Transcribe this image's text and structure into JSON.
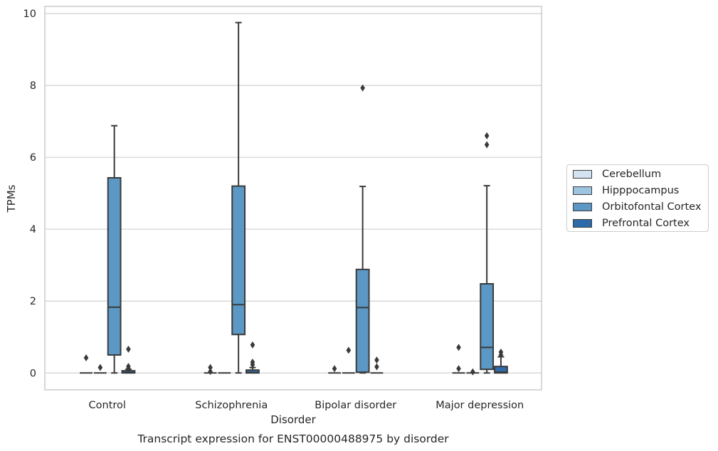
{
  "chart_data": {
    "type": "box",
    "title": "Transcript expression for ENST00000488975 by disorder",
    "xlabel": "Disorder",
    "ylabel": "TPMs",
    "ylim": [
      -0.47,
      10.2
    ],
    "yticks": [
      "0",
      "2",
      "4",
      "6",
      "8",
      "10"
    ],
    "categories": [
      "Control",
      "Schizophrenia",
      "Bipolar disorder",
      "Major depression"
    ],
    "grid": "y",
    "legend_position": "right",
    "series": [
      {
        "name": "Cerebellum",
        "color": "#d4e3f1",
        "boxes": [
          {
            "q1": 0,
            "median": 0,
            "q3": 0,
            "whisker_low": 0,
            "whisker_high": 0,
            "outliers": [
              0.42
            ]
          },
          {
            "q1": 0,
            "median": 0,
            "q3": 0,
            "whisker_low": 0,
            "whisker_high": 0,
            "outliers": [
              0.15,
              0.04
            ]
          },
          {
            "q1": 0,
            "median": 0,
            "q3": 0,
            "whisker_low": 0,
            "whisker_high": 0,
            "outliers": [
              0.12
            ]
          },
          {
            "q1": 0,
            "median": 0,
            "q3": 0,
            "whisker_low": 0,
            "whisker_high": 0,
            "outliers": [
              0.71,
              0.12
            ]
          }
        ]
      },
      {
        "name": "Hipppocampus",
        "color": "#9cc4e0",
        "boxes": [
          {
            "q1": 0,
            "median": 0,
            "q3": 0,
            "whisker_low": 0,
            "whisker_high": 0,
            "outliers": [
              0.15
            ]
          },
          {
            "q1": 0,
            "median": 0,
            "q3": 0,
            "whisker_low": 0,
            "whisker_high": 0,
            "outliers": []
          },
          {
            "q1": 0,
            "median": 0,
            "q3": 0,
            "whisker_low": 0,
            "whisker_high": 0,
            "outliers": [
              0.63
            ]
          },
          {
            "q1": 0,
            "median": 0,
            "q3": 0,
            "whisker_low": 0,
            "whisker_high": 0,
            "outliers": [
              0.03
            ]
          }
        ]
      },
      {
        "name": "Orbitofontal Cortex",
        "color": "#5b98c5",
        "boxes": [
          {
            "q1": 0.5,
            "median": 1.83,
            "q3": 5.43,
            "whisker_low": 0,
            "whisker_high": 6.88,
            "outliers": []
          },
          {
            "q1": 1.07,
            "median": 1.9,
            "q3": 5.2,
            "whisker_low": 0,
            "whisker_high": 9.75,
            "outliers": []
          },
          {
            "q1": 0.02,
            "median": 1.82,
            "q3": 2.88,
            "whisker_low": 0,
            "whisker_high": 5.19,
            "outliers": [
              7.93
            ]
          },
          {
            "q1": 0.1,
            "median": 0.71,
            "q3": 2.48,
            "whisker_low": 0,
            "whisker_high": 5.21,
            "outliers": [
              6.6,
              6.35
            ]
          }
        ]
      },
      {
        "name": "Prefrontal Cortex",
        "color": "#2d6ca8",
        "boxes": [
          {
            "q1": 0,
            "median": 0.01,
            "q3": 0.06,
            "whisker_low": 0,
            "whisker_high": 0.1,
            "outliers": [
              0.66,
              0.18,
              0.12
            ]
          },
          {
            "q1": 0,
            "median": 0.01,
            "q3": 0.08,
            "whisker_low": 0,
            "whisker_high": 0.15,
            "outliers": [
              0.78,
              0.3,
              0.23
            ]
          },
          {
            "q1": 0,
            "median": 0,
            "q3": 0,
            "whisker_low": 0,
            "whisker_high": 0,
            "outliers": [
              0.36,
              0.17
            ]
          },
          {
            "q1": 0,
            "median": 0.02,
            "q3": 0.18,
            "whisker_low": 0,
            "whisker_high": 0.45,
            "outliers": [
              0.58,
              0.5
            ]
          }
        ]
      }
    ]
  }
}
